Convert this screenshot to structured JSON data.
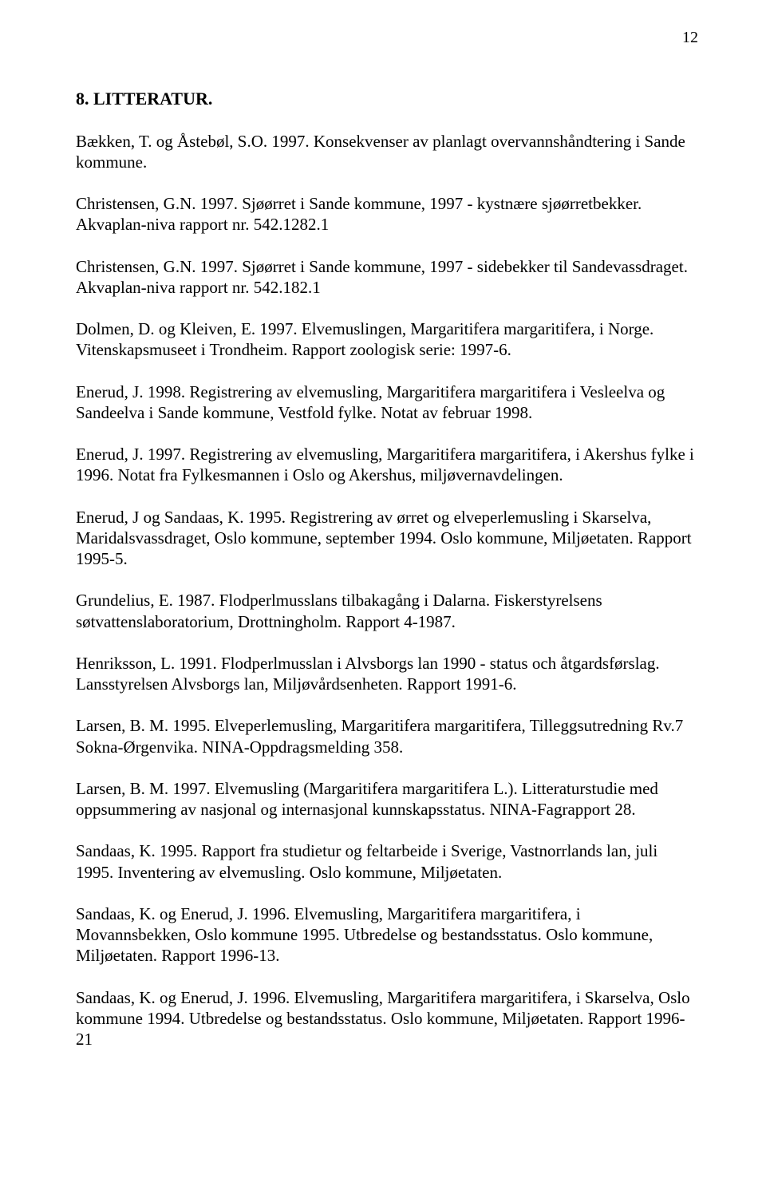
{
  "pageNumber": "12",
  "heading": "8. LITTERATUR.",
  "references": [
    "Bækken, T. og Åstebøl, S.O. 1997. Konsekvenser av planlagt overvannshåndtering i Sande kommune.",
    "Christensen, G.N. 1997. Sjøørret i Sande kommune, 1997 - kystnære sjøørretbekker. Akvaplan-niva rapport nr. 542.1282.1",
    "Christensen, G.N. 1997. Sjøørret i Sande kommune, 1997 - sidebekker til Sandevassdraget. Akvaplan-niva rapport nr. 542.182.1",
    "Dolmen, D. og Kleiven, E. 1997. Elvemuslingen, Margaritifera margaritifera, i Norge. Vitenskapsmuseet i Trondheim. Rapport zoologisk serie: 1997-6.",
    "Enerud, J. 1998. Registrering av elvemusling, Margaritifera margaritifera i Vesleelva og Sandeelva i Sande kommune, Vestfold fylke. Notat av februar 1998.",
    "Enerud, J. 1997. Registrering av elvemusling, Margaritifera margaritifera, i Akershus fylke i 1996. Notat fra Fylkesmannen i Oslo og Akershus, miljøvernavdelingen.",
    "Enerud, J og Sandaas, K. 1995. Registrering av ørret og elveperlemusling i Skarselva, Maridalsvassdraget, Oslo kommune, september 1994. Oslo kommune, Miljøetaten. Rapport 1995-5.",
    "Grundelius, E. 1987. Flodperlmusslans tilbakagång i Dalarna. Fiskerstyrelsens søtvattenslaboratorium, Drottningholm. Rapport 4-1987.",
    "Henriksson, L. 1991. Flodperlmusslan i Alvsborgs lan 1990 - status och åtgardsførslag. Lansstyrelsen Alvsborgs lan, Miljøvårdsenheten. Rapport 1991-6.",
    "Larsen, B. M. 1995. Elveperlemusling, Margaritifera margaritifera, Tilleggsutredning Rv.7 Sokna-Ørgenvika. NINA-Oppdragsmelding 358.",
    "Larsen, B. M. 1997. Elvemusling (Margaritifera margaritifera L.). Litteraturstudie med oppsummering av nasjonal og internasjonal kunnskapsstatus. NINA-Fagrapport 28.",
    "Sandaas, K. 1995. Rapport fra studietur og feltarbeide i Sverige, Vastnorrlands lan, juli 1995. Inventering av elvemusling. Oslo kommune, Miljøetaten.",
    "Sandaas, K. og Enerud, J. 1996. Elvemusling, Margaritifera margaritifera, i Movannsbekken, Oslo kommune 1995. Utbredelse og bestandsstatus. Oslo kommune, Miljøetaten. Rapport 1996-13.",
    "Sandaas, K. og Enerud, J. 1996. Elvemusling, Margaritifera margaritifera, i Skarselva, Oslo kommune 1994. Utbredelse og bestandsstatus. Oslo kommune, Miljøetaten. Rapport 1996-21"
  ]
}
